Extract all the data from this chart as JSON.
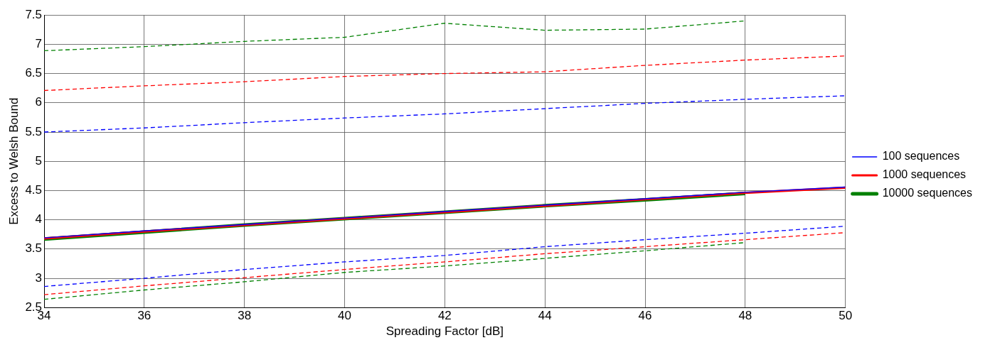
{
  "chart_data": {
    "type": "line",
    "xlabel": "Spreading Factor [dB]",
    "ylabel": "Excess to Welsh Bound",
    "x": [
      34,
      36,
      38,
      40,
      42,
      44,
      46,
      48,
      50
    ],
    "xlim": [
      34,
      50
    ],
    "xticks": [
      34,
      36,
      38,
      40,
      42,
      44,
      46,
      48,
      50
    ],
    "ylim": [
      2.5,
      7.5
    ],
    "yticks": [
      2.5,
      3,
      3.5,
      4,
      4.5,
      5,
      5.5,
      6,
      6.5,
      7,
      7.5
    ],
    "grid": true,
    "legend": "right",
    "marker": "none",
    "series": [
      {
        "name": "100 sequences",
        "color": "#0000ff",
        "line_style": "solid",
        "values": [
          3.69,
          3.81,
          3.92,
          4.03,
          4.14,
          4.25,
          4.36,
          4.47,
          4.56
        ]
      },
      {
        "name": "1000 sequences",
        "color": "#ff0000",
        "line_style": "solid",
        "values": [
          3.68,
          3.8,
          3.91,
          4.02,
          4.13,
          4.24,
          4.35,
          4.46,
          4.55
        ]
      },
      {
        "name": "10000 sequences",
        "color": "#008000",
        "line_style": "solid",
        "x": [
          34,
          36,
          38,
          40,
          42,
          44,
          46,
          48
        ],
        "values": [
          3.67,
          3.79,
          3.91,
          4.02,
          4.13,
          4.24,
          4.34,
          4.45
        ]
      },
      {
        "color": "#0000ff",
        "line_style": "dashed",
        "values": [
          5.5,
          5.57,
          5.66,
          5.74,
          5.81,
          5.9,
          5.99,
          6.06,
          6.12
        ]
      },
      {
        "color": "#ff0000",
        "line_style": "dashed",
        "values": [
          6.21,
          6.29,
          6.36,
          6.45,
          6.5,
          6.53,
          6.64,
          6.73,
          6.8
        ]
      },
      {
        "color": "#008000",
        "line_style": "dashed",
        "x": [
          34,
          36,
          38,
          40,
          42,
          44,
          46,
          48
        ],
        "values": [
          6.89,
          6.96,
          7.05,
          7.12,
          7.36,
          7.24,
          7.26,
          7.4
        ]
      },
      {
        "color": "#0000ff",
        "line_style": "dashed",
        "values": [
          2.86,
          3.0,
          3.15,
          3.28,
          3.39,
          3.54,
          3.66,
          3.77,
          3.89
        ]
      },
      {
        "color": "#ff0000",
        "line_style": "dashed",
        "values": [
          2.72,
          2.87,
          3.01,
          3.15,
          3.28,
          3.42,
          3.54,
          3.66,
          3.78
        ]
      },
      {
        "color": "#008000",
        "line_style": "dashed",
        "x": [
          34,
          36,
          38,
          40,
          42,
          44,
          46,
          48
        ],
        "values": [
          2.64,
          2.8,
          2.94,
          3.1,
          3.21,
          3.34,
          3.47,
          3.61
        ]
      }
    ]
  }
}
